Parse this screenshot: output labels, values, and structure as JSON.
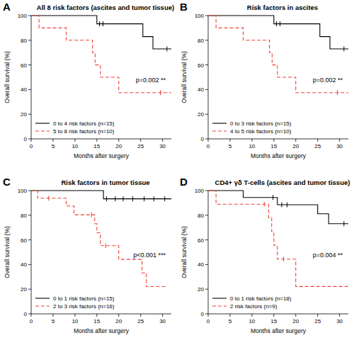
{
  "chart_data": [
    {
      "type": "step",
      "panel_label": "A",
      "title": "All 8 risk factors (ascites and tumor tissue)",
      "x_label": "Months after surgery",
      "y_label": "Overall survival (%)",
      "annotation": "p=0.002 **",
      "xlim": [
        0,
        32
      ],
      "ylim": [
        0,
        100
      ],
      "xticks": [
        0,
        5,
        10,
        15,
        20,
        25,
        30
      ],
      "yticks": [
        0,
        20,
        40,
        60,
        80,
        100
      ],
      "legend": "lower-left",
      "series": [
        {
          "name": "0 to 4 risk factors (n=15)",
          "color": "#000000",
          "line_style": "solid",
          "marker": "vline",
          "x": [
            0,
            15,
            25.5,
            27.8,
            32
          ],
          "values": [
            100,
            93.3,
            83,
            73,
            73
          ],
          "censor_x": [
            15.6,
            16.4,
            31
          ],
          "censor_y": [
            93.3,
            93.3,
            73
          ]
        },
        {
          "name": "5 to 8 risk factors (n=10)",
          "color": "#ee4035",
          "line_style": "dashed",
          "marker": "vline",
          "x": [
            0,
            1.8,
            8,
            14,
            14.6,
            15.8,
            20,
            32
          ],
          "values": [
            100,
            90,
            80,
            70,
            60,
            50,
            37.5,
            37.5
          ],
          "censor_x": [
            29.5
          ],
          "censor_y": [
            37.5
          ]
        }
      ]
    },
    {
      "type": "step",
      "panel_label": "B",
      "title": "Risk factors in ascites",
      "x_label": "Months after surgery",
      "y_label": "Overall survival (%)",
      "annotation": "p=0.002 **",
      "xlim": [
        0,
        32
      ],
      "ylim": [
        0,
        100
      ],
      "xticks": [
        0,
        5,
        10,
        15,
        20,
        25,
        30
      ],
      "yticks": [
        0,
        20,
        40,
        60,
        80,
        100
      ],
      "legend": "lower-left",
      "series": [
        {
          "name": "0 to 3 risk factors (n=15)",
          "color": "#000000",
          "line_style": "solid",
          "marker": "vline",
          "x": [
            0,
            15,
            25.5,
            27.8,
            32
          ],
          "values": [
            100,
            93.3,
            83,
            73,
            73
          ],
          "censor_x": [
            15.6,
            16.4,
            31
          ],
          "censor_y": [
            93.3,
            93.3,
            73
          ]
        },
        {
          "name": "4 to 5 risk factors (n=10)",
          "color": "#ee4035",
          "line_style": "dashed",
          "marker": "vline",
          "x": [
            0,
            1.8,
            8,
            14,
            14.6,
            15.8,
            20,
            32
          ],
          "values": [
            100,
            90,
            80,
            70,
            60,
            50,
            37.5,
            37.5
          ],
          "censor_x": [
            29.5
          ],
          "censor_y": [
            37.5
          ]
        }
      ]
    },
    {
      "type": "step",
      "panel_label": "C",
      "title": "Risk factors in tumor tissue",
      "x_label": "Months after surgery",
      "y_label": "Overall survival (%)",
      "annotation": "p<0.001 ***",
      "xlim": [
        0,
        32
      ],
      "ylim": [
        0,
        100
      ],
      "xticks": [
        0,
        5,
        10,
        15,
        20,
        25,
        30
      ],
      "yticks": [
        0,
        20,
        40,
        60,
        80,
        100
      ],
      "legend": "lower-left",
      "series": [
        {
          "name": "0 to 1 risk factors (n=15)",
          "color": "#000000",
          "line_style": "solid",
          "marker": "vline",
          "x": [
            0,
            16.5,
            32
          ],
          "values": [
            100,
            93.3,
            93.3
          ],
          "censor_x": [
            17.2,
            19.2,
            21,
            23.2,
            25.8,
            28,
            30.5
          ],
          "censor_y": [
            93.3,
            93.3,
            93.3,
            93.3,
            93.3,
            93.3,
            93.3
          ]
        },
        {
          "name": "2 to 3 risk factors (n=16)",
          "color": "#ee4035",
          "line_style": "dashed",
          "marker": "vline",
          "x": [
            0,
            1.5,
            8,
            9.8,
            14.5,
            15,
            15.8,
            20,
            25.3,
            26.3,
            31
          ],
          "values": [
            100,
            93.8,
            87.5,
            80.4,
            73.1,
            65.8,
            55.3,
            44.2,
            33.2,
            22.1,
            22.1
          ],
          "censor_x": [
            4,
            13.8,
            17
          ],
          "censor_y": [
            93.8,
            80.4,
            55.3
          ]
        }
      ]
    },
    {
      "type": "step",
      "panel_label": "D",
      "title": "CD4+ γδ T-cells (ascites and tumor tissue)",
      "x_label": "Months after surgery",
      "y_label": "Overall survival (%)",
      "annotation": "p=0.004 **",
      "xlim": [
        0,
        32
      ],
      "ylim": [
        0,
        100
      ],
      "xticks": [
        0,
        5,
        10,
        15,
        20,
        25,
        30
      ],
      "yticks": [
        0,
        20,
        40,
        60,
        80,
        100
      ],
      "legend": "lower-left",
      "series": [
        {
          "name": "0 to 1 risk factors (n=18)",
          "color": "#000000",
          "line_style": "solid",
          "marker": "vline",
          "x": [
            0,
            8,
            15.8,
            25,
            27.5,
            32
          ],
          "values": [
            100,
            94.4,
            88.5,
            81.2,
            73.1,
            73.1
          ],
          "censor_x": [
            14.8,
            16.8,
            18,
            31
          ],
          "censor_y": [
            94.4,
            88.5,
            88.5,
            73.1
          ]
        },
        {
          "name": "2 risk factors (n=9)",
          "color": "#ee4035",
          "line_style": "dashed",
          "marker": "vline",
          "x": [
            0,
            1.8,
            13.8,
            14.5,
            15,
            15.8,
            20,
            32
          ],
          "values": [
            100,
            88.9,
            77.8,
            66.7,
            55.6,
            44.4,
            22.2,
            22.2
          ],
          "censor_x": [
            12.8,
            17.2
          ],
          "censor_y": [
            88.9,
            44.4
          ]
        }
      ]
    }
  ]
}
